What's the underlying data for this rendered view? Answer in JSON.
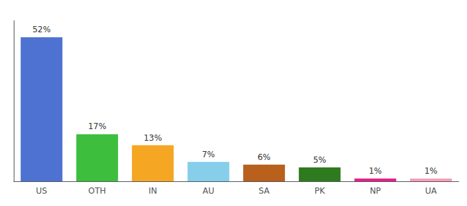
{
  "chart_data": {
    "type": "bar",
    "categories": [
      "US",
      "OTH",
      "IN",
      "AU",
      "SA",
      "PK",
      "NP",
      "UA"
    ],
    "values": [
      52,
      17,
      13,
      7,
      6,
      5,
      1,
      1
    ],
    "value_labels": [
      "52%",
      "17%",
      "13%",
      "7%",
      "6%",
      "5%",
      "1%",
      "1%"
    ],
    "colors": [
      "#4d72d1",
      "#3dbe3d",
      "#f5a623",
      "#87ceeb",
      "#b8601c",
      "#2d7a1f",
      "#e91e8c",
      "#f4a0b8"
    ],
    "ylim": [
      0,
      58
    ],
    "data_labels": true,
    "tick_labels": "x",
    "grid": false
  }
}
